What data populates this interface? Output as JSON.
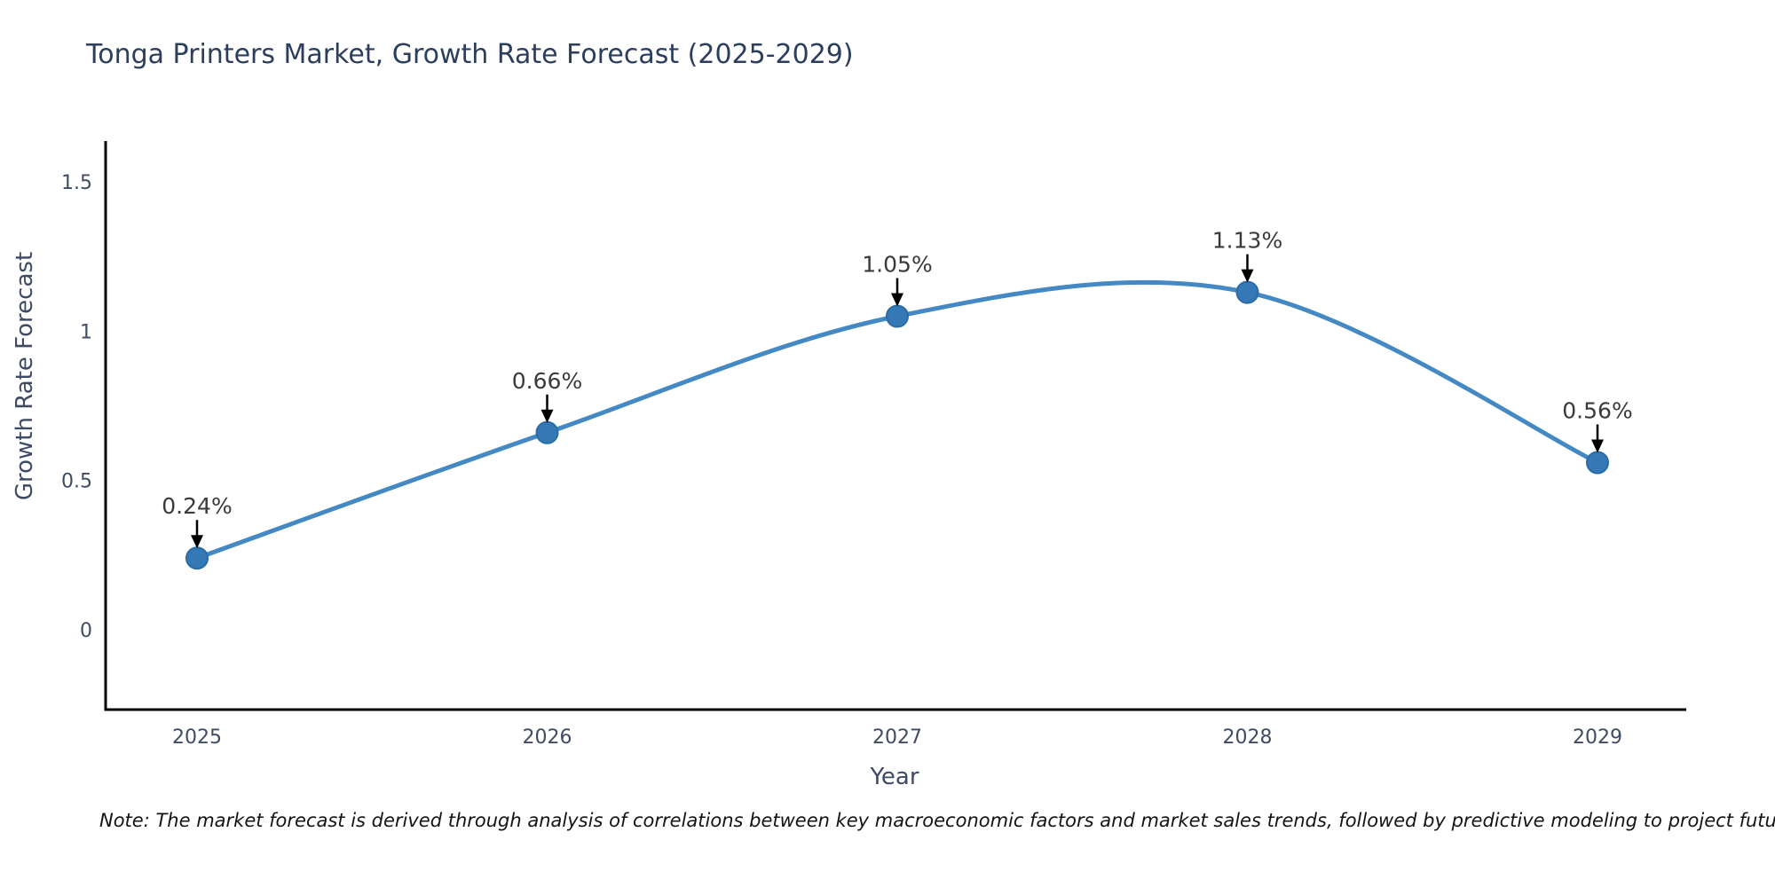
{
  "chart_data": {
    "type": "line",
    "title": "Tonga Printers Market, Growth Rate Forecast (2025-2029)",
    "xlabel": "Year",
    "ylabel": "Growth Rate Forecast",
    "x": [
      2025,
      2026,
      2027,
      2028,
      2029
    ],
    "values": [
      0.24,
      0.66,
      1.05,
      1.13,
      0.56
    ],
    "point_labels": [
      "0.24%",
      "0.66%",
      "1.05%",
      "1.13%",
      "0.56%"
    ],
    "yticks": [
      0,
      0.5,
      1,
      1.5
    ],
    "ylim": [
      -0.27,
      1.62
    ],
    "xlim": [
      2024.74,
      2029.25
    ],
    "line_shape": "spline",
    "grid": false,
    "legend": "none",
    "colors": {
      "line": "#4589c4",
      "marker": "#3478b6",
      "marker_edge": "#2b6ca5",
      "axis": "#000000",
      "title": "#2c3e5d",
      "tick": "#3f4c63",
      "axis_label": "#3d4a63",
      "annotation": "#3a3a3a",
      "arrow": "#000000",
      "note": "#141414"
    }
  },
  "note": "Note: The market forecast is derived through analysis of correlations between key macroeconomic factors and market sales trends, followed by predictive modeling to project future sales"
}
